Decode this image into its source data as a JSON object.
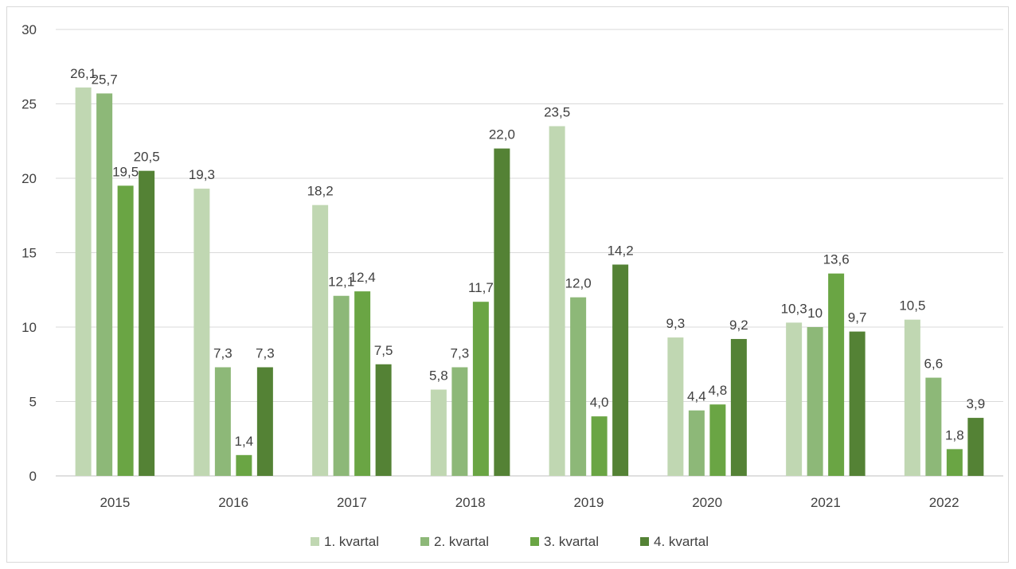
{
  "chart_data": {
    "type": "bar",
    "categories": [
      "2015",
      "2016",
      "2017",
      "2018",
      "2019",
      "2020",
      "2021",
      "2022"
    ],
    "series": [
      {
        "name": "1. kvartal",
        "values": [
          26.1,
          19.3,
          18.2,
          5.8,
          23.5,
          9.3,
          10.3,
          10.5
        ],
        "labels": [
          "26,1",
          "19,3",
          "18,2",
          "5,8",
          "23,5",
          "9,3",
          "10,3",
          "10,5"
        ],
        "color": "#c0d7b2"
      },
      {
        "name": "2. kvartal",
        "values": [
          25.7,
          7.3,
          12.1,
          7.3,
          12.0,
          4.4,
          10.0,
          6.6
        ],
        "labels": [
          "25,7",
          "7,3",
          "12,1",
          "7,3",
          "12,0",
          "4,4",
          "10",
          "6,6"
        ],
        "color": "#8db878"
      },
      {
        "name": "3. kvartal",
        "values": [
          19.5,
          1.4,
          12.4,
          11.7,
          4.0,
          4.8,
          13.6,
          1.8
        ],
        "labels": [
          "19,5",
          "1,4",
          "12,4",
          "11,7",
          "4,0",
          "4,8",
          "13,6",
          "1,8"
        ],
        "color": "#6aa544"
      },
      {
        "name": "4. kvartal",
        "values": [
          20.5,
          7.3,
          7.5,
          22.0,
          14.2,
          9.2,
          9.7,
          3.9
        ],
        "labels": [
          "20,5",
          "7,3",
          "7,5",
          "22,0",
          "14,2",
          "9,2",
          "9,7",
          "3,9"
        ],
        "color": "#548235"
      }
    ],
    "yticks": [
      "0",
      "5",
      "10",
      "15",
      "20",
      "25",
      "30"
    ],
    "ylim": [
      0,
      30
    ],
    "grid": true,
    "legend_position": "bottom",
    "title": "",
    "xlabel": "",
    "ylabel": ""
  }
}
